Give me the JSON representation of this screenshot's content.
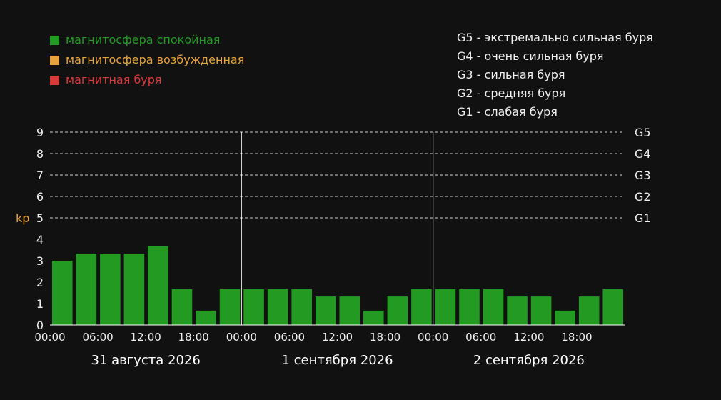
{
  "legend": [
    {
      "label": "магнитосфера спокойная",
      "color": "#239b23"
    },
    {
      "label": "магнитосфера возбужденная",
      "color": "#e8a33c"
    },
    {
      "label": "магнитная буря",
      "color": "#d93a3a"
    }
  ],
  "storm_levels": [
    {
      "code": "G5",
      "text": "экстремально сильная буря"
    },
    {
      "code": "G4",
      "text": "очень сильная буря"
    },
    {
      "code": "G3",
      "text": "сильная буря"
    },
    {
      "code": "G2",
      "text": "средняя буря"
    },
    {
      "code": "G1",
      "text": "слабая буря"
    }
  ],
  "chart_data": {
    "type": "bar",
    "ylabel": "kp",
    "ylim": [
      0,
      9
    ],
    "yticks": [
      0,
      1,
      2,
      3,
      4,
      5,
      6,
      7,
      8,
      9
    ],
    "right_labels": [
      {
        "y": 9,
        "label": "G5"
      },
      {
        "y": 8,
        "label": "G4"
      },
      {
        "y": 7,
        "label": "G3"
      },
      {
        "y": 6,
        "label": "G2"
      },
      {
        "y": 5,
        "label": "G1"
      }
    ],
    "grid": "dashed at y=5..9",
    "days": [
      {
        "date": "31 августа 2026",
        "tick_labels": [
          "00:00",
          "06:00",
          "12:00",
          "18:00"
        ],
        "values": [
          3.0,
          3.33,
          3.33,
          3.33,
          3.67,
          1.67,
          0.67,
          1.67
        ]
      },
      {
        "date": "1 сентября 2026",
        "tick_labels": [
          "00:00",
          "06:00",
          "12:00",
          "18:00"
        ],
        "values": [
          1.67,
          1.67,
          1.67,
          1.33,
          1.33,
          0.67,
          1.33,
          1.67
        ]
      },
      {
        "date": "2 сентября 2026",
        "tick_labels": [
          "00:00",
          "06:00",
          "12:00",
          "18:00"
        ],
        "values": [
          1.67,
          1.67,
          1.67,
          1.33,
          1.33,
          0.67,
          1.33,
          1.67
        ]
      }
    ],
    "bar_color": "#239b23"
  }
}
